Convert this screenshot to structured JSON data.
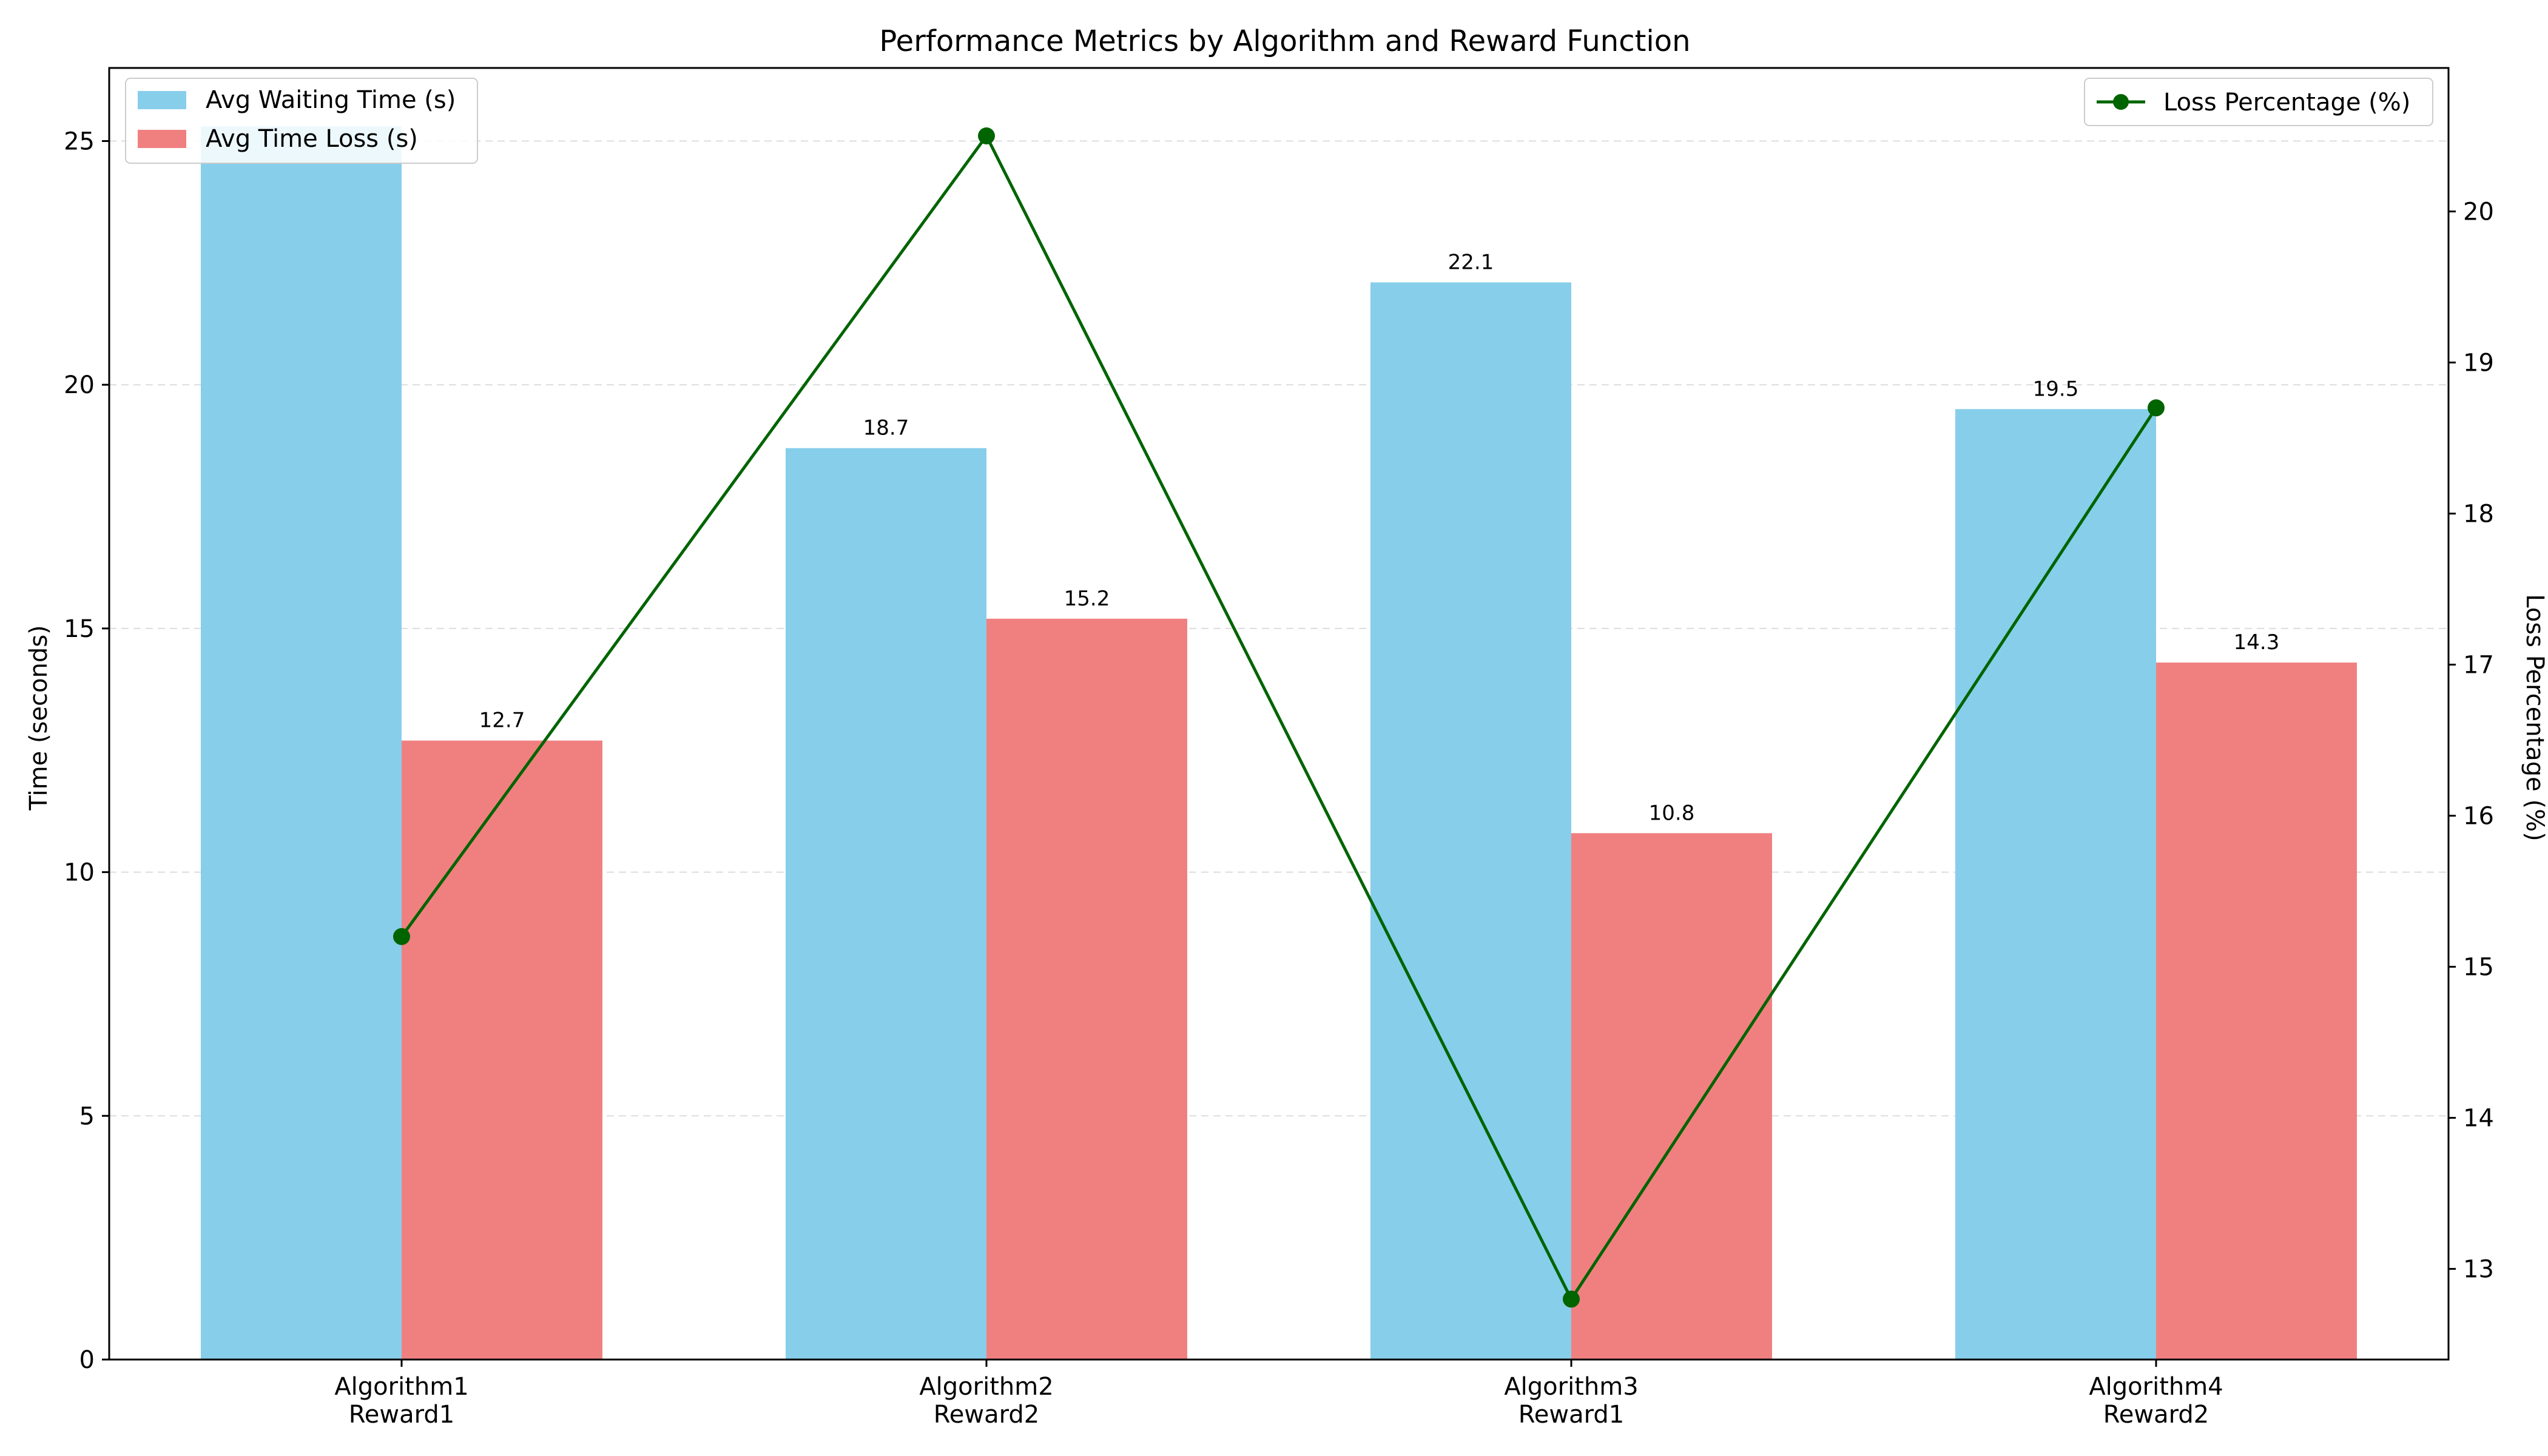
{
  "chart_data": {
    "type": "bar",
    "title": "Performance Metrics by Algorithm and Reward Function",
    "categories": [
      [
        "Algorithm1",
        "Reward1"
      ],
      [
        "Algorithm2",
        "Reward2"
      ],
      [
        "Algorithm3",
        "Reward1"
      ],
      [
        "Algorithm4",
        "Reward2"
      ]
    ],
    "ylabel": "Time (seconds)",
    "y2label": "Loss Percentage (%)",
    "ylim": [
      0,
      26.5
    ],
    "y2lim": [
      12.4,
      20.95
    ],
    "yticks": [
      0,
      5,
      10,
      15,
      20,
      25
    ],
    "y2ticks": [
      13,
      14,
      15,
      16,
      17,
      18,
      19,
      20
    ],
    "grid": "horizontal dashed",
    "series": [
      {
        "name": "Avg Waiting Time (s)",
        "kind": "bar",
        "axis": "left",
        "color": "#87CEEB",
        "values": [
          25.3,
          18.7,
          22.1,
          19.5
        ],
        "labels": [
          "",
          "18.7",
          "22.1",
          "19.5"
        ]
      },
      {
        "name": "Avg Time Loss (s)",
        "kind": "bar",
        "axis": "left",
        "color": "#F08080",
        "values": [
          12.7,
          15.2,
          10.8,
          14.3
        ],
        "labels": [
          "12.7",
          "15.2",
          "10.8",
          "14.3"
        ]
      },
      {
        "name": "Loss Percentage (%)",
        "kind": "line",
        "axis": "right",
        "color": "#006400",
        "values": [
          15.2,
          20.5,
          12.8,
          18.7
        ]
      }
    ],
    "legend_left": "upper-left",
    "legend_right": "upper-right"
  }
}
